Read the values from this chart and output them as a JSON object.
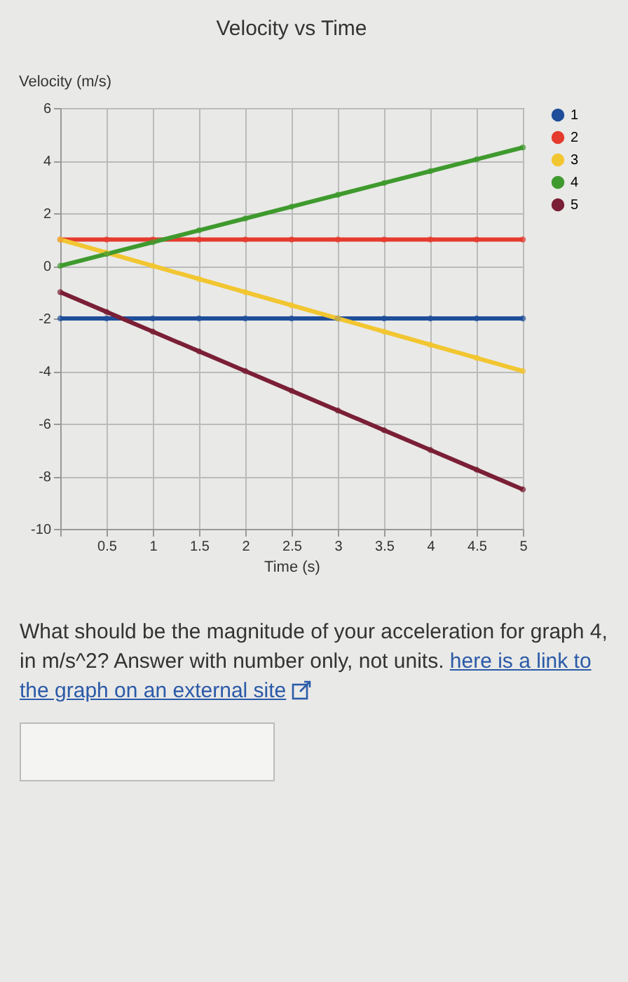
{
  "chart_data": {
    "type": "line",
    "title": "Velocity vs Time",
    "xlabel": "Time (s)",
    "ylabel": "Velocity (m/s)",
    "x": [
      0,
      0.5,
      1,
      1.5,
      2,
      2.5,
      3,
      3.5,
      4,
      4.5,
      5
    ],
    "series": [
      {
        "name": "1",
        "color": "#1f4e9a",
        "values": [
          -2,
          -2,
          -2,
          -2,
          -2,
          -2,
          -2,
          -2,
          -2,
          -2,
          -2
        ]
      },
      {
        "name": "2",
        "color": "#e53a2e",
        "values": [
          1,
          1,
          1,
          1,
          1,
          1,
          1,
          1,
          1,
          1,
          1
        ]
      },
      {
        "name": "3",
        "color": "#f2c631",
        "values": [
          1,
          0.5,
          0,
          -0.5,
          -1,
          -1.5,
          -2,
          -2.5,
          -3,
          -3.5,
          -4
        ]
      },
      {
        "name": "4",
        "color": "#3f9a2e",
        "values": [
          0,
          0.45,
          0.9,
          1.35,
          1.8,
          2.25,
          2.7,
          3.15,
          3.6,
          4.05,
          4.5
        ]
      },
      {
        "name": "5",
        "color": "#7a1f35",
        "values": [
          -1,
          -1.75,
          -2.5,
          -3.25,
          -4,
          -4.75,
          -5.5,
          -6.25,
          -7,
          -7.75,
          -8.5
        ]
      }
    ],
    "xlim": [
      0,
      5
    ],
    "xticks": [
      {
        "value": 0,
        "label": null
      },
      0.5,
      1,
      1.5,
      2,
      2.5,
      3,
      3.5,
      4,
      4.5,
      5
    ],
    "ylim": [
      -10,
      6
    ],
    "yticks": [
      -10,
      -8,
      -6,
      -4,
      -2,
      0,
      2,
      4,
      6
    ],
    "grid": true,
    "legend": "right",
    "marker": "circle",
    "line_style": "solid",
    "annotations": [
      "What should be the magnitude of your acceleration for graph 4, in m/s^2? Answer with number only, not units.",
      "here is a link to the graph on an external site"
    ]
  }
}
